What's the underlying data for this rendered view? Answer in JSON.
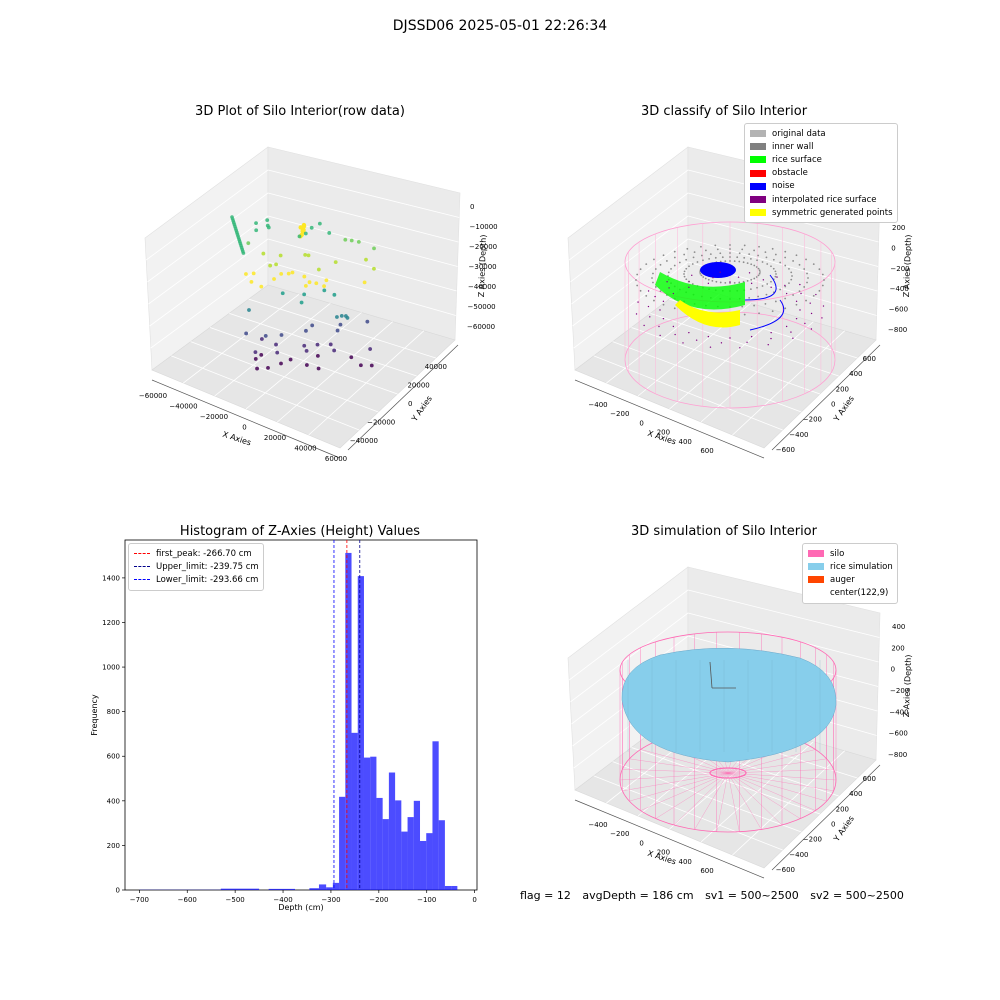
{
  "suptitle": "DJSSD06 2025-05-01 22:26:34",
  "panels": {
    "p1": {
      "title": "3D Plot of Silo Interior(row data)",
      "xlabel": "X Axies",
      "ylabel": "Y Axies",
      "zlabel": "Z Axies (Depth)",
      "xticks": [
        "−60000",
        "−40000",
        "−20000",
        "0",
        "20000",
        "40000",
        "60000"
      ],
      "yticks": [
        "−40000",
        "−20000",
        "0",
        "20000",
        "40000"
      ],
      "zticks": [
        "0",
        "−10000",
        "−20000",
        "−30000",
        "−40000",
        "−50000",
        "−60000"
      ]
    },
    "p2": {
      "title": "3D classify of Silo Interior",
      "xlabel": "X Axies",
      "ylabel": "Y Axies",
      "zlabel": "Z Axies (Depth)",
      "xticks": [
        "−400",
        "−200",
        "0",
        "200",
        "400",
        "600"
      ],
      "yticks": [
        "−600",
        "−400",
        "−200",
        "0",
        "200",
        "400",
        "600"
      ],
      "zticks": [
        "200",
        "0",
        "−200",
        "−400",
        "−600",
        "−800"
      ],
      "legend": [
        {
          "label": "original data",
          "color": "#b3b3b3"
        },
        {
          "label": "inner wall",
          "color": "#808080"
        },
        {
          "label": "rice surface",
          "color": "#00ff00"
        },
        {
          "label": "obstacle",
          "color": "#ff0000"
        },
        {
          "label": "noise",
          "color": "#0000ff"
        },
        {
          "label": "interpolated rice surface",
          "color": "#800080"
        },
        {
          "label": "symmetric generated points",
          "color": "#ffff00"
        }
      ]
    },
    "p4": {
      "title": "3D simulation of Silo Interior",
      "xlabel": "X Axies",
      "ylabel": "Y Axies",
      "zlabel": "Z Axies (Depth)",
      "xticks": [
        "−400",
        "−200",
        "0",
        "200",
        "400",
        "600"
      ],
      "yticks": [
        "−600",
        "−400",
        "−200",
        "0",
        "200",
        "400",
        "600"
      ],
      "zticks": [
        "400",
        "200",
        "0",
        "−200",
        "−400",
        "−600",
        "−800"
      ],
      "legend": [
        {
          "label": "silo",
          "color": "#ff69b4"
        },
        {
          "label": "rice simulation",
          "color": "#87ceeb"
        },
        {
          "label": "auger",
          "color": "#ff4500"
        },
        {
          "label": "center(122,9)",
          "color": ""
        }
      ]
    }
  },
  "chart_data": [
    {
      "type": "histogram",
      "title": "Histogram of Z-Axies (Height) Values",
      "xlabel": "Depth (cm)",
      "ylabel": "Frequency",
      "xlim": [
        -730,
        5
      ],
      "ylim": [
        0,
        1570
      ],
      "xticks": [
        -700,
        -600,
        -500,
        -400,
        -300,
        -200,
        -100,
        0
      ],
      "yticks": [
        0,
        200,
        400,
        600,
        800,
        1000,
        1200,
        1400
      ],
      "bar_color": "#0000ff",
      "bins": [
        {
          "x0": -700,
          "x1": -530,
          "count": 1
        },
        {
          "x0": -530,
          "x1": -450,
          "count": 6
        },
        {
          "x0": -430,
          "x1": -375,
          "count": 5
        },
        {
          "x0": -345,
          "x1": -325,
          "count": 8
        },
        {
          "x0": -325,
          "x1": -310,
          "count": 25
        },
        {
          "x0": -310,
          "x1": -296,
          "count": 12
        },
        {
          "x0": -296,
          "x1": -283,
          "count": 32
        },
        {
          "x0": -283,
          "x1": -270,
          "count": 418
        },
        {
          "x0": -270,
          "x1": -257,
          "count": 1512
        },
        {
          "x0": -257,
          "x1": -244,
          "count": 705
        },
        {
          "x0": -244,
          "x1": -231,
          "count": 1408
        },
        {
          "x0": -231,
          "x1": -218,
          "count": 594
        },
        {
          "x0": -218,
          "x1": -205,
          "count": 598
        },
        {
          "x0": -205,
          "x1": -192,
          "count": 413
        },
        {
          "x0": -192,
          "x1": -179,
          "count": 318
        },
        {
          "x0": -179,
          "x1": -166,
          "count": 527
        },
        {
          "x0": -166,
          "x1": -153,
          "count": 402
        },
        {
          "x0": -153,
          "x1": -140,
          "count": 262
        },
        {
          "x0": -140,
          "x1": -127,
          "count": 327
        },
        {
          "x0": -127,
          "x1": -114,
          "count": 400
        },
        {
          "x0": -114,
          "x1": -101,
          "count": 220
        },
        {
          "x0": -101,
          "x1": -88,
          "count": 255
        },
        {
          "x0": -88,
          "x1": -75,
          "count": 667
        },
        {
          "x0": -75,
          "x1": -62,
          "count": 313
        },
        {
          "x0": -62,
          "x1": -49,
          "count": 18
        },
        {
          "x0": -49,
          "x1": -36,
          "count": 18
        }
      ],
      "vlines": [
        {
          "label": "first_peak: -266.70 cm",
          "x": -266.7,
          "color": "#ff0000"
        },
        {
          "label": "Upper_limit: -239.75 cm",
          "x": -239.75,
          "color": "#00008b"
        },
        {
          "label": "Lower_limit: -293.66 cm",
          "x": -293.66,
          "color": "#0000ff"
        }
      ],
      "legend_position": "upper-left"
    }
  ],
  "footer": {
    "flag": "flag = 12",
    "avg": "avgDepth = 186 cm",
    "sv1": "sv1 = 500~2500",
    "sv2": "sv2 = 500~2500"
  }
}
